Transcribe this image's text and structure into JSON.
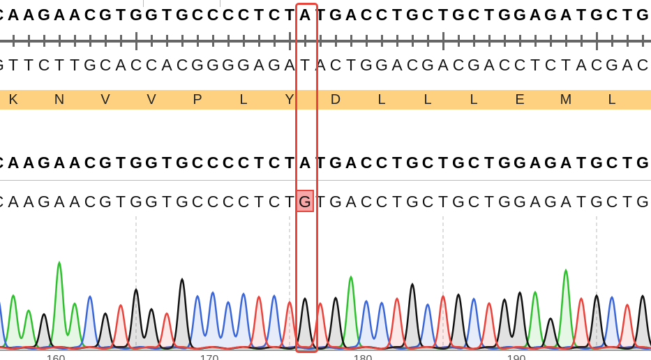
{
  "reference": {
    "sequence": "CAAGAACGTGGTGCCCCTCTATGACCTGCTGCTGGAGATGCTG",
    "complement": "GTTCTTGCACCACGGGGAGATACTGGACGACGACCTCTACGAC",
    "translation": [
      "K",
      "N",
      "V",
      "V",
      "P",
      "L",
      "Y",
      "D",
      "L",
      "L",
      "L",
      "E",
      "M",
      "L"
    ]
  },
  "alignment": {
    "reference_sequence": "CAAGAACGTGGTGCCCCTCTATGACCTGCTGCTGGAGATGCTG",
    "read_sequence": "CAAGAACGTGGTGCCCCTCTGTGACCTGCTGCTGGAGATGCTG",
    "highlighted_position_index": 20,
    "reference_base": "A",
    "read_base": "G"
  },
  "chromatogram": {
    "base_colors": {
      "A": "#2fbf2f",
      "C": "#3a66d8",
      "G": "#111111",
      "T": "#e8433c"
    },
    "peak_heights": [
      75,
      80,
      55,
      52,
      127,
      68,
      78,
      53,
      63,
      89,
      57,
      53,
      102,
      77,
      84,
      68,
      82,
      78,
      79,
      70,
      73,
      68,
      74,
      108,
      71,
      67,
      73,
      97,
      66,
      79,
      79,
      73,
      66,
      74,
      82,
      85,
      43,
      118,
      73,
      80,
      77,
      66,
      77
    ],
    "axis_labels": [
      "160",
      "170",
      "180",
      "190"
    ]
  },
  "colors": {
    "highlight": "#e8463c",
    "translation_band": "#fdd17f",
    "mutation_fill": "#f7a7a7"
  }
}
